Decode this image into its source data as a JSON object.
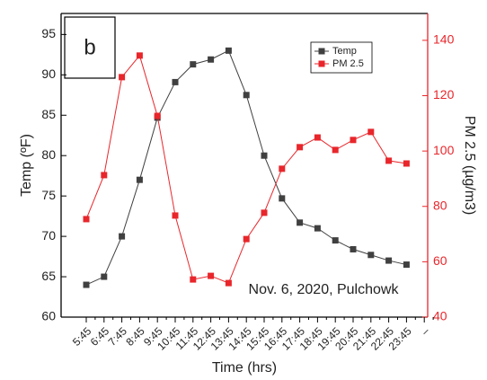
{
  "chart_data": {
    "type": "line",
    "panel_label": "b",
    "annotation": "Nov. 6, 2020, Pulchowk",
    "x_label": "Time (hrs)",
    "y_label": "Temp (ºF)",
    "y2_label": "PM 2.5 (µg/m3)",
    "categories": [
      "5:45",
      "6:45",
      "7:45",
      "8:45",
      "9:45",
      "10:45",
      "11:45",
      "12:45",
      "13:45",
      "14:45",
      "15:45",
      "16:45",
      "17:45",
      "18:45",
      "19:45",
      "20:45",
      "21:45",
      "22:45",
      "23:45",
      "–"
    ],
    "series": [
      {
        "name": "Temp",
        "color": "#404040",
        "axis": "y",
        "values": [
          64,
          65,
          70,
          77,
          84.7,
          89.1,
          91.3,
          91.9,
          93,
          87.5,
          80,
          74.7,
          71.7,
          71,
          69.5,
          68.4,
          67.7,
          67,
          66.5,
          null
        ]
      },
      {
        "name": "PM 2.5",
        "color": "#e8262b",
        "axis": "y2",
        "values": [
          75.4,
          91.3,
          126.7,
          134.5,
          112.7,
          76.7,
          53.6,
          54.9,
          52.3,
          68.2,
          77.7,
          93.6,
          101.4,
          104.9,
          100.4,
          104,
          106.9,
          96.5,
          95.5,
          null
        ]
      }
    ],
    "ylim": [
      60,
      97.6
    ],
    "yticks": [
      60,
      65,
      70,
      75,
      80,
      85,
      90,
      95
    ],
    "y2lim": [
      40,
      149.7
    ],
    "y2ticks": [
      40,
      60,
      80,
      100,
      120,
      140
    ],
    "y2color": "#e8262b",
    "legend": "top-right"
  }
}
